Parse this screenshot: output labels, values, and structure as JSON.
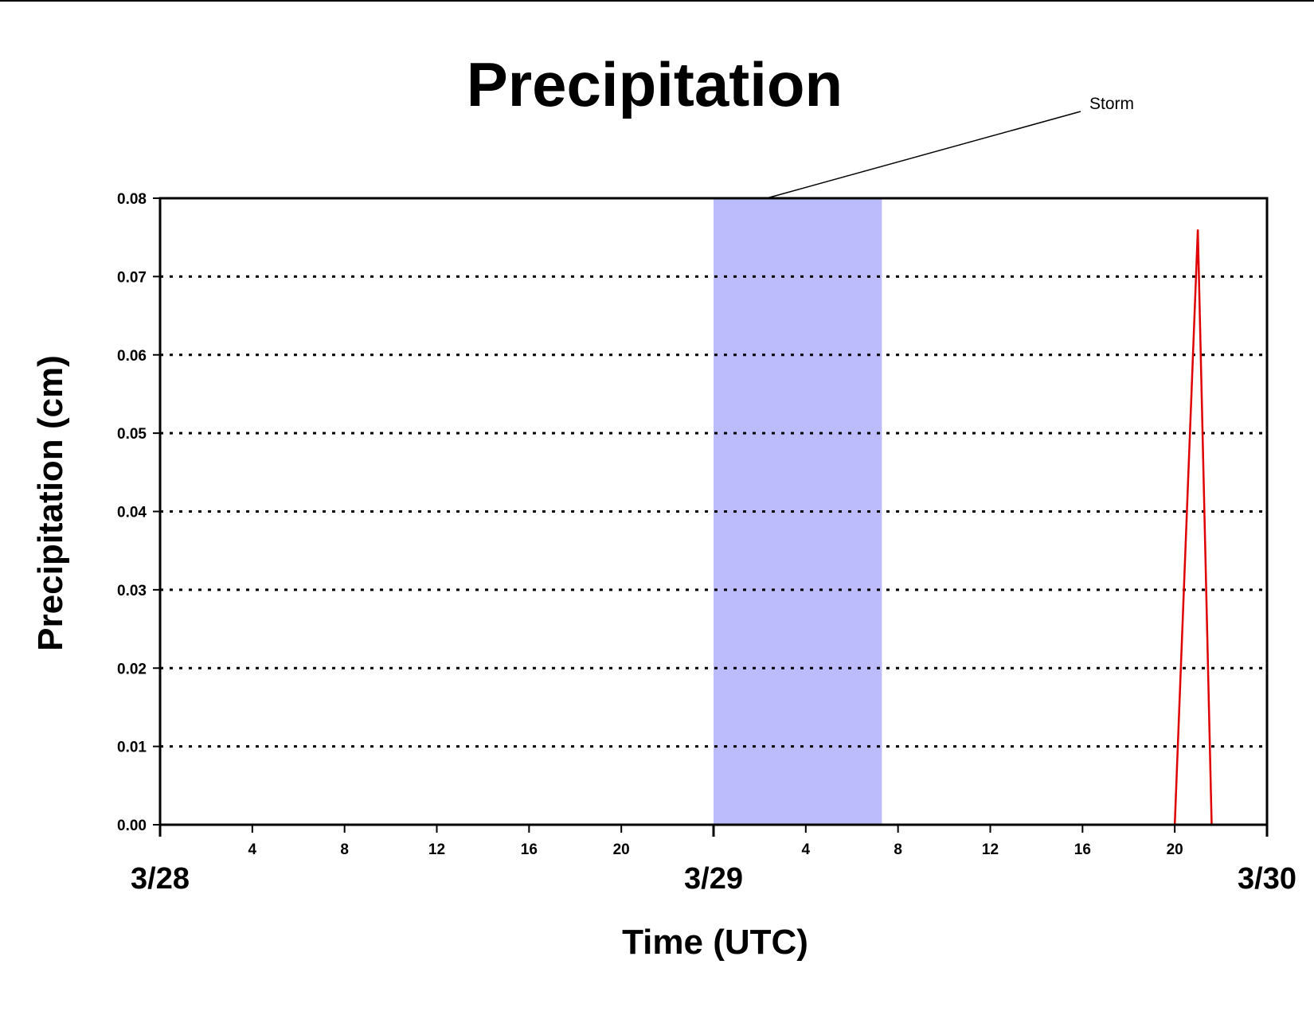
{
  "chart_data": {
    "type": "line",
    "title": "Precipitation",
    "xlabel": "Time (UTC)",
    "ylabel": "Precipitation (cm)",
    "x_range_hours": [
      0,
      48
    ],
    "ylim": [
      0,
      0.08
    ],
    "y_ticks": [
      "0.00",
      "0.01",
      "0.02",
      "0.03",
      "0.04",
      "0.05",
      "0.06",
      "0.07",
      "0.08"
    ],
    "x_hour_ticks": [
      {
        "hour": 4,
        "label": "4"
      },
      {
        "hour": 8,
        "label": "8"
      },
      {
        "hour": 12,
        "label": "12"
      },
      {
        "hour": 16,
        "label": "16"
      },
      {
        "hour": 20,
        "label": "20"
      },
      {
        "hour": 28,
        "label": "4"
      },
      {
        "hour": 32,
        "label": "8"
      },
      {
        "hour": 36,
        "label": "12"
      },
      {
        "hour": 40,
        "label": "16"
      },
      {
        "hour": 44,
        "label": "20"
      }
    ],
    "x_day_labels": [
      {
        "hour": 0,
        "label": "3/28"
      },
      {
        "hour": 24,
        "label": "3/29"
      },
      {
        "hour": 48,
        "label": "3/30"
      }
    ],
    "grid": "horizontal dotted",
    "shaded_region": {
      "start_hour": 24,
      "end_hour": 31.3,
      "color": "#bcbcfc"
    },
    "annotation": {
      "text": "Storm",
      "target_hour": 26.3
    },
    "series": [
      {
        "color": "#e00000",
        "points": [
          {
            "x": 0,
            "y": 0.0
          },
          {
            "x": 44,
            "y": 0.0
          },
          {
            "x": 45,
            "y": 0.076
          },
          {
            "x": 45.6,
            "y": 0.0
          },
          {
            "x": 48,
            "y": 0.0
          }
        ]
      }
    ]
  }
}
